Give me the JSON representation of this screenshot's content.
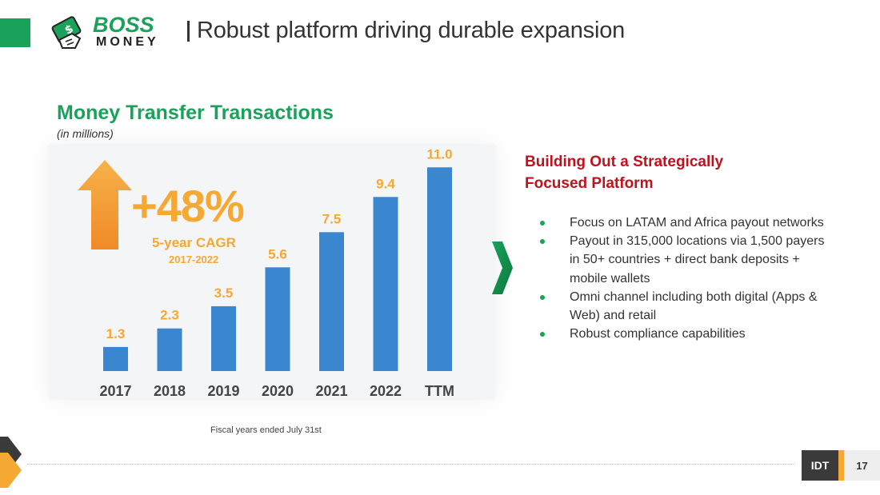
{
  "header": {
    "logo_top": "BOSS",
    "logo_bottom": "MONEY",
    "title": "Robust platform driving durable expansion"
  },
  "section": {
    "title": "Money Transfer Transactions",
    "subtitle": "(in millions)"
  },
  "cagr": {
    "value": "+48%",
    "label": "5-year CAGR",
    "range": "2017-2022"
  },
  "chart_data": {
    "type": "bar",
    "title": "Money Transfer Transactions",
    "ylabel": "(in millions)",
    "xlabel": "",
    "categories": [
      "2017",
      "2018",
      "2019",
      "2020",
      "2021",
      "2022",
      "TTM"
    ],
    "values": [
      1.3,
      2.3,
      3.5,
      5.6,
      7.5,
      9.4,
      11.0
    ],
    "value_labels": [
      "1.3",
      "2.3",
      "3.5",
      "5.6",
      "7.5",
      "9.4",
      "11.0"
    ],
    "ylim": [
      0,
      11.4
    ],
    "grid": false,
    "bar_color": "#3a86cf",
    "label_color": "#f5a832",
    "tick_color": "#444444"
  },
  "footnote": "Fiscal years  ended July 31st",
  "side": {
    "heading": "Building Out a Strategically Focused Platform",
    "bullets": [
      "Focus on LATAM and Africa payout networks",
      "Payout in 315,000 locations via 1,500 payers in 50+ countries  + direct bank deposits + mobile wallets",
      "Omni channel including both digital (Apps & Web) and retail",
      "Robust compliance capabilities"
    ]
  },
  "footer": {
    "company": "IDT",
    "page_number": "17"
  },
  "colors": {
    "brand_green": "#1aa15a",
    "accent_orange": "#f5a832",
    "heading_red": "#c0121c",
    "bar_blue": "#3a86cf"
  }
}
